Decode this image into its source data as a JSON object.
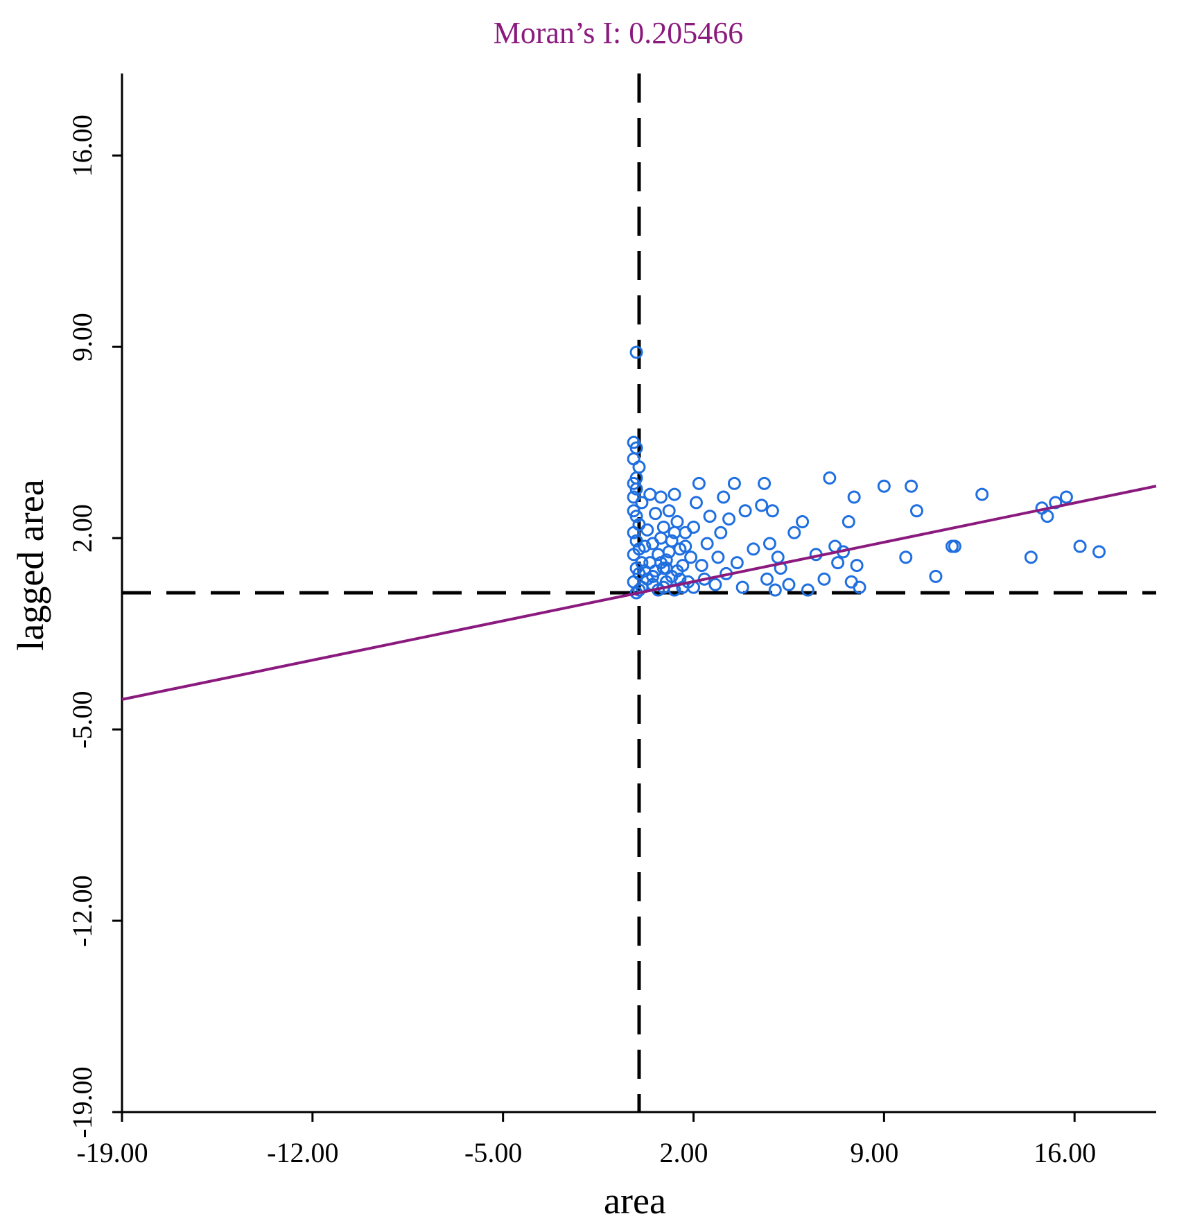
{
  "chart_data": {
    "type": "scatter",
    "title": "Moran’s I: 0.205466",
    "xlabel": "area",
    "ylabel": "lagged area",
    "xlim": [
      -19,
      19
    ],
    "ylim": [
      -19,
      19
    ],
    "xticks": [
      -19,
      -12,
      -5,
      2,
      9,
      16
    ],
    "yticks": [
      -19,
      -12,
      -5,
      2,
      9,
      16
    ],
    "xtick_labels": [
      "-19.00",
      "-12.00",
      "-5.00",
      "2.00",
      "9.00",
      "16.00"
    ],
    "ytick_labels": [
      "-19.00",
      "-12.00",
      "-5.00",
      "2.00",
      "9.00",
      "16.00"
    ],
    "reference_lines": {
      "x": 0,
      "y": 0,
      "style": "dashed"
    },
    "regression_line": {
      "slope": 0.205466,
      "intercept": 0.0
    },
    "colors": {
      "points": "#1f6fe0",
      "regression": "#8b1a7e",
      "title": "#8b1a7e",
      "axis": "#000000"
    },
    "points": [
      [
        -0.1,
        8.8
      ],
      [
        -0.2,
        5.5
      ],
      [
        -0.1,
        5.3
      ],
      [
        -0.2,
        4.9
      ],
      [
        0.0,
        4.6
      ],
      [
        -0.1,
        4.2
      ],
      [
        -0.2,
        4.0
      ],
      [
        -0.1,
        3.8
      ],
      [
        -0.2,
        3.5
      ],
      [
        0.1,
        3.3
      ],
      [
        -0.2,
        3.0
      ],
      [
        -0.1,
        2.8
      ],
      [
        0.0,
        2.5
      ],
      [
        -0.2,
        2.2
      ],
      [
        -0.1,
        1.9
      ],
      [
        0.0,
        1.6
      ],
      [
        -0.2,
        1.4
      ],
      [
        0.1,
        1.1
      ],
      [
        -0.1,
        0.9
      ],
      [
        0.0,
        0.7
      ],
      [
        -0.2,
        0.4
      ],
      [
        0.1,
        0.2
      ],
      [
        -0.1,
        0.0
      ],
      [
        0.0,
        0.1
      ],
      [
        0.4,
        3.6
      ],
      [
        0.5,
        1.8
      ],
      [
        0.6,
        0.8
      ],
      [
        0.8,
        3.5
      ],
      [
        0.9,
        2.4
      ],
      [
        1.0,
        1.2
      ],
      [
        1.1,
        3.0
      ],
      [
        1.2,
        0.6
      ],
      [
        1.3,
        3.6
      ],
      [
        1.4,
        2.6
      ],
      [
        1.5,
        1.6
      ],
      [
        1.6,
        1.0
      ],
      [
        1.7,
        2.2
      ],
      [
        1.8,
        0.4
      ],
      [
        0.3,
        0.5
      ],
      [
        0.5,
        0.3
      ],
      [
        0.7,
        1.4
      ],
      [
        0.9,
        0.2
      ],
      [
        1.0,
        0.9
      ],
      [
        1.2,
        1.9
      ],
      [
        1.3,
        0.1
      ],
      [
        1.5,
        0.5
      ],
      [
        0.6,
        2.9
      ],
      [
        0.8,
        2.0
      ],
      [
        0.4,
        1.1
      ],
      [
        0.2,
        0.8
      ],
      [
        0.3,
        2.3
      ],
      [
        0.7,
        0.1
      ],
      [
        1.1,
        1.5
      ],
      [
        1.4,
        0.8
      ],
      [
        1.6,
        0.2
      ],
      [
        1.9,
        1.3
      ],
      [
        2.0,
        2.4
      ],
      [
        2.1,
        3.3
      ],
      [
        2.2,
        4.0
      ],
      [
        2.3,
        1.0
      ],
      [
        2.4,
        0.5
      ],
      [
        2.5,
        1.8
      ],
      [
        2.6,
        2.8
      ],
      [
        2.8,
        0.3
      ],
      [
        2.9,
        1.3
      ],
      [
        3.0,
        2.2
      ],
      [
        3.1,
        3.5
      ],
      [
        3.2,
        0.7
      ],
      [
        3.3,
        2.7
      ],
      [
        3.5,
        4.0
      ],
      [
        3.6,
        1.1
      ],
      [
        3.8,
        0.2
      ],
      [
        3.9,
        3.0
      ],
      [
        4.2,
        1.6
      ],
      [
        4.5,
        3.2
      ],
      [
        4.7,
        0.5
      ],
      [
        4.9,
        3.0
      ],
      [
        5.0,
        0.1
      ],
      [
        4.6,
        4.0
      ],
      [
        4.8,
        1.8
      ],
      [
        5.1,
        1.3
      ],
      [
        5.2,
        0.9
      ],
      [
        5.5,
        0.3
      ],
      [
        5.7,
        2.2
      ],
      [
        6.0,
        2.6
      ],
      [
        6.2,
        0.1
      ],
      [
        6.5,
        1.4
      ],
      [
        6.8,
        0.5
      ],
      [
        7.0,
        4.2
      ],
      [
        7.2,
        1.7
      ],
      [
        7.3,
        1.1
      ],
      [
        7.5,
        1.5
      ],
      [
        7.7,
        2.6
      ],
      [
        7.8,
        0.4
      ],
      [
        7.9,
        3.5
      ],
      [
        8.0,
        1.0
      ],
      [
        8.1,
        0.2
      ],
      [
        9.0,
        3.9
      ],
      [
        9.8,
        1.3
      ],
      [
        10.0,
        3.9
      ],
      [
        10.2,
        3.0
      ],
      [
        10.9,
        0.6
      ],
      [
        11.5,
        1.7
      ],
      [
        11.6,
        1.7
      ],
      [
        12.6,
        3.6
      ],
      [
        14.4,
        1.3
      ],
      [
        14.8,
        3.1
      ],
      [
        15.0,
        2.8
      ],
      [
        15.3,
        3.3
      ],
      [
        15.7,
        3.5
      ],
      [
        16.2,
        1.7
      ],
      [
        16.9,
        1.5
      ],
      [
        0.9,
        0.9
      ],
      [
        1.3,
        2.2
      ],
      [
        0.2,
        1.7
      ],
      [
        0.5,
        0.6
      ],
      [
        0.8,
        1.1
      ],
      [
        1.0,
        0.4
      ],
      [
        1.7,
        1.7
      ],
      [
        2.0,
        0.2
      ]
    ]
  }
}
